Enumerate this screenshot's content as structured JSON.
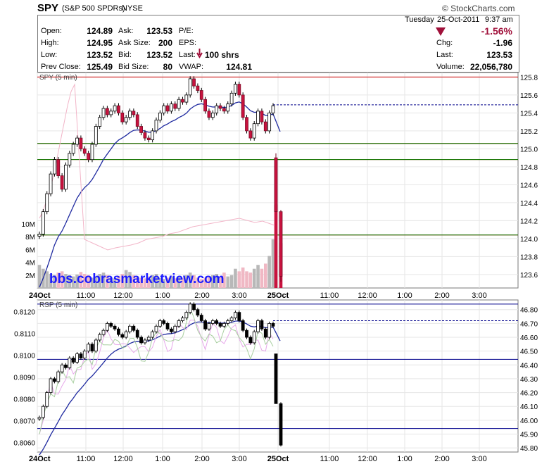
{
  "header": {
    "ticker": "SPY",
    "name": "(S&P 500 SPDRs)",
    "exchange": "NYSE",
    "brand": "© StockCharts.com"
  },
  "quote": {
    "day": "Tuesday",
    "date": "25-Oct-2011",
    "time": "9:37 am",
    "open_label": "Open:",
    "open": "124.89",
    "high_label": "High:",
    "high": "124.95",
    "low_label": "Low:",
    "low": "123.52",
    "prev_close_label": "Prev Close:",
    "prev_close": "125.49",
    "ask_label": "Ask:",
    "ask": "123.53",
    "ask_size_label": "Ask Size:",
    "ask_size": "200",
    "bid_label": "Bid:",
    "bid": "123.52",
    "bid_size_label": "Bid Size:",
    "bid_size": "80",
    "pe_label": "P/E:",
    "eps_label": "EPS:",
    "last_trade_label": "Last:",
    "last_trade": "100 shrs",
    "vwap_label": "VWAP:",
    "vwap": "124.81",
    "pct_change": "-1.56%",
    "chg_label": "Chg:",
    "chg": "-1.96",
    "last_label": "Last:",
    "last": "123.53",
    "volume_label": "Volume:",
    "volume": "22,056,780",
    "down_color": "#a0103a"
  },
  "watermark": "bbs.cobrasmarketview.com",
  "chart_data": [
    {
      "type": "candlestick",
      "title": "SPY (5 min)",
      "interval": "5 min",
      "x_tick_labels": [
        "24Oct",
        "11:00",
        "12:00",
        "1:00",
        "2:00",
        "3:00",
        "25Oct",
        "11:00",
        "12:00",
        "1:00",
        "2:00",
        "3:00"
      ],
      "ylim": [
        123.45,
        125.85
      ],
      "y_ticks": [
        123.6,
        123.8,
        124.0,
        124.2,
        124.4,
        124.6,
        124.8,
        125.0,
        125.2,
        125.4,
        125.6,
        125.8
      ],
      "y_tick_labels": [
        "123.6",
        "123.8",
        "124.0",
        "124.2",
        "124.4",
        "124.6",
        "124.8",
        "125.0",
        "125.2",
        "125.4",
        "125.6",
        "125.8"
      ],
      "horizontal_lines": [
        {
          "value": 125.8,
          "color": "#cc0000"
        },
        {
          "value": 125.49,
          "color": "#00008b",
          "dashed": true
        },
        {
          "value": 125.06,
          "color": "#cc0000"
        },
        {
          "value": 125.06,
          "color": "#008000"
        },
        {
          "value": 124.88,
          "color": "#cc0000"
        },
        {
          "value": 124.88,
          "color": "#008000"
        },
        {
          "value": 124.04,
          "color": "#cc0000"
        },
        {
          "value": 124.04,
          "color": "#008000"
        }
      ],
      "day1_closes": [
        124.05,
        124.3,
        124.5,
        124.72,
        124.88,
        124.7,
        124.55,
        124.82,
        124.95,
        125.05,
        125.12,
        125.0,
        124.95,
        124.88,
        125.05,
        125.25,
        125.35,
        125.45,
        125.38,
        125.42,
        125.48,
        125.4,
        125.3,
        125.35,
        125.42,
        125.38,
        125.25,
        125.18,
        125.12,
        125.1,
        125.2,
        125.32,
        125.4,
        125.48,
        125.42,
        125.5,
        125.45,
        125.55,
        125.52,
        125.6,
        125.78,
        125.7,
        125.65,
        125.55,
        125.42,
        125.35,
        125.4,
        125.48,
        125.45,
        125.42,
        125.5,
        125.62,
        125.72,
        125.6,
        125.35,
        125.2,
        125.12,
        125.28,
        125.42,
        125.3,
        125.2,
        125.4,
        125.48
      ],
      "day2_bars": [
        {
          "open": 124.9,
          "high": 124.95,
          "low": 124.3,
          "close": 124.3
        },
        {
          "open": 124.3,
          "high": 124.32,
          "low": 123.52,
          "close": 123.58
        }
      ],
      "volume": {
        "y_tick_labels": [
          "2M",
          "4M",
          "6M",
          "8M",
          "10M"
        ],
        "y_ticks": [
          2,
          4,
          6,
          8,
          10
        ],
        "unit": "M",
        "day1": [
          3.6,
          3.0,
          2.6,
          2.2,
          2.0,
          2.4,
          2.6,
          2.2,
          2.0,
          1.8,
          2.1,
          2.5,
          2.2,
          2.0,
          1.6,
          1.8,
          2.2,
          2.4,
          2.0,
          1.6,
          1.5,
          1.9,
          2.2,
          2.8,
          2.5,
          2.0,
          1.8,
          1.6,
          1.5,
          1.8,
          2.0,
          2.2,
          1.6,
          1.4,
          1.6,
          1.8,
          1.5,
          1.7,
          1.6,
          2.0,
          2.4,
          2.0,
          1.6,
          1.4,
          1.6,
          1.8,
          2.0,
          2.2,
          1.8,
          2.4,
          1.8,
          2.0,
          3.0,
          2.6,
          3.2,
          2.6,
          2.4,
          3.0,
          3.6,
          3.0,
          3.8,
          5.0,
          7.6
        ],
        "day2": [
          13.0,
          7.0
        ]
      }
    },
    {
      "type": "candlestick",
      "title": "RSP (5 min)",
      "interval": "5 min",
      "ylim": [
        45.77,
        46.87
      ],
      "y_ticks": [
        45.8,
        45.9,
        46.0,
        46.1,
        46.2,
        46.3,
        46.4,
        46.5,
        46.6,
        46.7,
        46.8
      ],
      "y_tick_labels": [
        "45.80",
        "45.90",
        "46.00",
        "46.10",
        "46.20",
        "46.30",
        "46.40",
        "46.50",
        "46.60",
        "46.70",
        "46.80"
      ],
      "left_axis_labels": [
        "0.8060",
        "0.8070",
        "0.8080",
        "0.8090",
        "0.8100",
        "0.8110",
        "0.8120"
      ],
      "left_axis_values": [
        0.806,
        0.807,
        0.808,
        0.809,
        0.81,
        0.811,
        0.812
      ],
      "left_axis_range": [
        0.80557,
        0.81254
      ],
      "horizontal_lines": [
        {
          "value": 46.84,
          "color": "#00008b"
        },
        {
          "value": 46.72,
          "color": "#00008b",
          "dashed": true
        },
        {
          "value": 46.44,
          "color": "#00008b"
        },
        {
          "value": 45.94,
          "color": "#00008b"
        }
      ],
      "day1_closes": [
        46.02,
        46.1,
        46.2,
        46.3,
        46.28,
        46.35,
        46.4,
        46.38,
        46.45,
        46.42,
        46.48,
        46.45,
        46.5,
        46.55,
        46.5,
        46.58,
        46.62,
        46.65,
        46.7,
        46.68,
        46.66,
        46.62,
        46.6,
        46.64,
        46.68,
        46.65,
        46.6,
        46.56,
        46.58,
        46.6,
        46.64,
        46.68,
        46.72,
        46.7,
        46.66,
        46.64,
        46.68,
        46.72,
        46.74,
        46.78,
        46.84,
        46.8,
        46.76,
        46.72,
        46.66,
        46.7,
        46.72,
        46.7,
        46.68,
        46.7,
        46.72,
        46.74,
        46.78,
        46.72,
        46.65,
        46.6,
        46.56,
        46.64,
        46.72,
        46.66,
        46.6,
        46.7,
        46.68
      ],
      "day2_bars": [
        {
          "open": 46.48,
          "high": 46.48,
          "low": 46.12,
          "close": 46.12
        },
        {
          "open": 46.12,
          "high": 46.13,
          "low": 45.81,
          "close": 45.82
        }
      ]
    }
  ]
}
